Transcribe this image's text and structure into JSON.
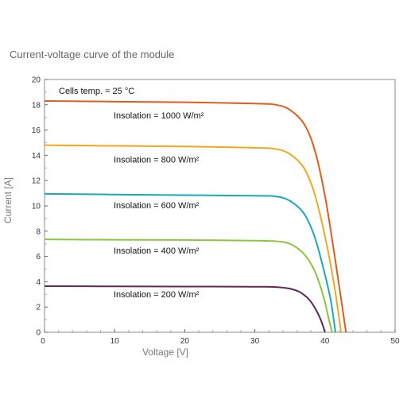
{
  "chart_data": {
    "type": "line",
    "title": "Current-voltage curve of the module",
    "xlabel": "Voltage [V]",
    "ylabel": "Current [A]",
    "xlim": [
      0,
      50
    ],
    "ylim": [
      0,
      20
    ],
    "xticks": [
      0,
      10,
      20,
      30,
      40,
      50
    ],
    "yticks": [
      0,
      2,
      4,
      6,
      8,
      10,
      12,
      14,
      16,
      18,
      20
    ],
    "grid": false,
    "note": "Cells temp. = 25 °C",
    "series": [
      {
        "name": "Insolation = 1000 W/m²",
        "color": "#e05c1c",
        "isc": 18.3,
        "voc": 43.0,
        "x": [
          0,
          10,
          20,
          30,
          33,
          35,
          37,
          38.5,
          40,
          41.5,
          43
        ],
        "y": [
          18.3,
          18.25,
          18.2,
          18.1,
          18.0,
          17.6,
          16.5,
          14.5,
          10.8,
          5.6,
          0
        ]
      },
      {
        "name": "Insolation = 800 W/m²",
        "color": "#f2a71f",
        "isc": 14.8,
        "voc": 42.3,
        "x": [
          0,
          10,
          20,
          30,
          33,
          35,
          37,
          38.5,
          40,
          41.3,
          42.3
        ],
        "y": [
          14.8,
          14.75,
          14.7,
          14.6,
          14.5,
          14.1,
          13.0,
          11.0,
          7.6,
          3.8,
          0
        ]
      },
      {
        "name": "Insolation = 600 W/m²",
        "color": "#1aa9b8",
        "isc": 10.95,
        "voc": 41.5,
        "x": [
          0,
          10,
          20,
          30,
          33,
          35,
          37,
          38.5,
          39.8,
          40.8,
          41.5
        ],
        "y": [
          10.95,
          10.9,
          10.85,
          10.8,
          10.75,
          10.4,
          9.4,
          7.6,
          5.0,
          2.6,
          0
        ]
      },
      {
        "name": "Insolation = 400 W/m²",
        "color": "#8cc63f",
        "isc": 7.35,
        "voc": 41.0,
        "x": [
          0,
          10,
          20,
          30,
          33,
          35,
          37,
          38.5,
          39.7,
          40.4,
          41.0
        ],
        "y": [
          7.35,
          7.32,
          7.3,
          7.25,
          7.2,
          7.0,
          6.2,
          4.9,
          3.0,
          1.4,
          0
        ]
      },
      {
        "name": "Insolation = 200 W/m²",
        "color": "#5e2a57",
        "isc": 3.65,
        "voc": 40.0,
        "x": [
          0,
          10,
          20,
          30,
          33,
          35,
          36.5,
          37.8,
          38.8,
          39.5,
          40.0
        ],
        "y": [
          3.65,
          3.63,
          3.62,
          3.6,
          3.58,
          3.45,
          3.15,
          2.55,
          1.7,
          0.85,
          0
        ]
      }
    ]
  }
}
